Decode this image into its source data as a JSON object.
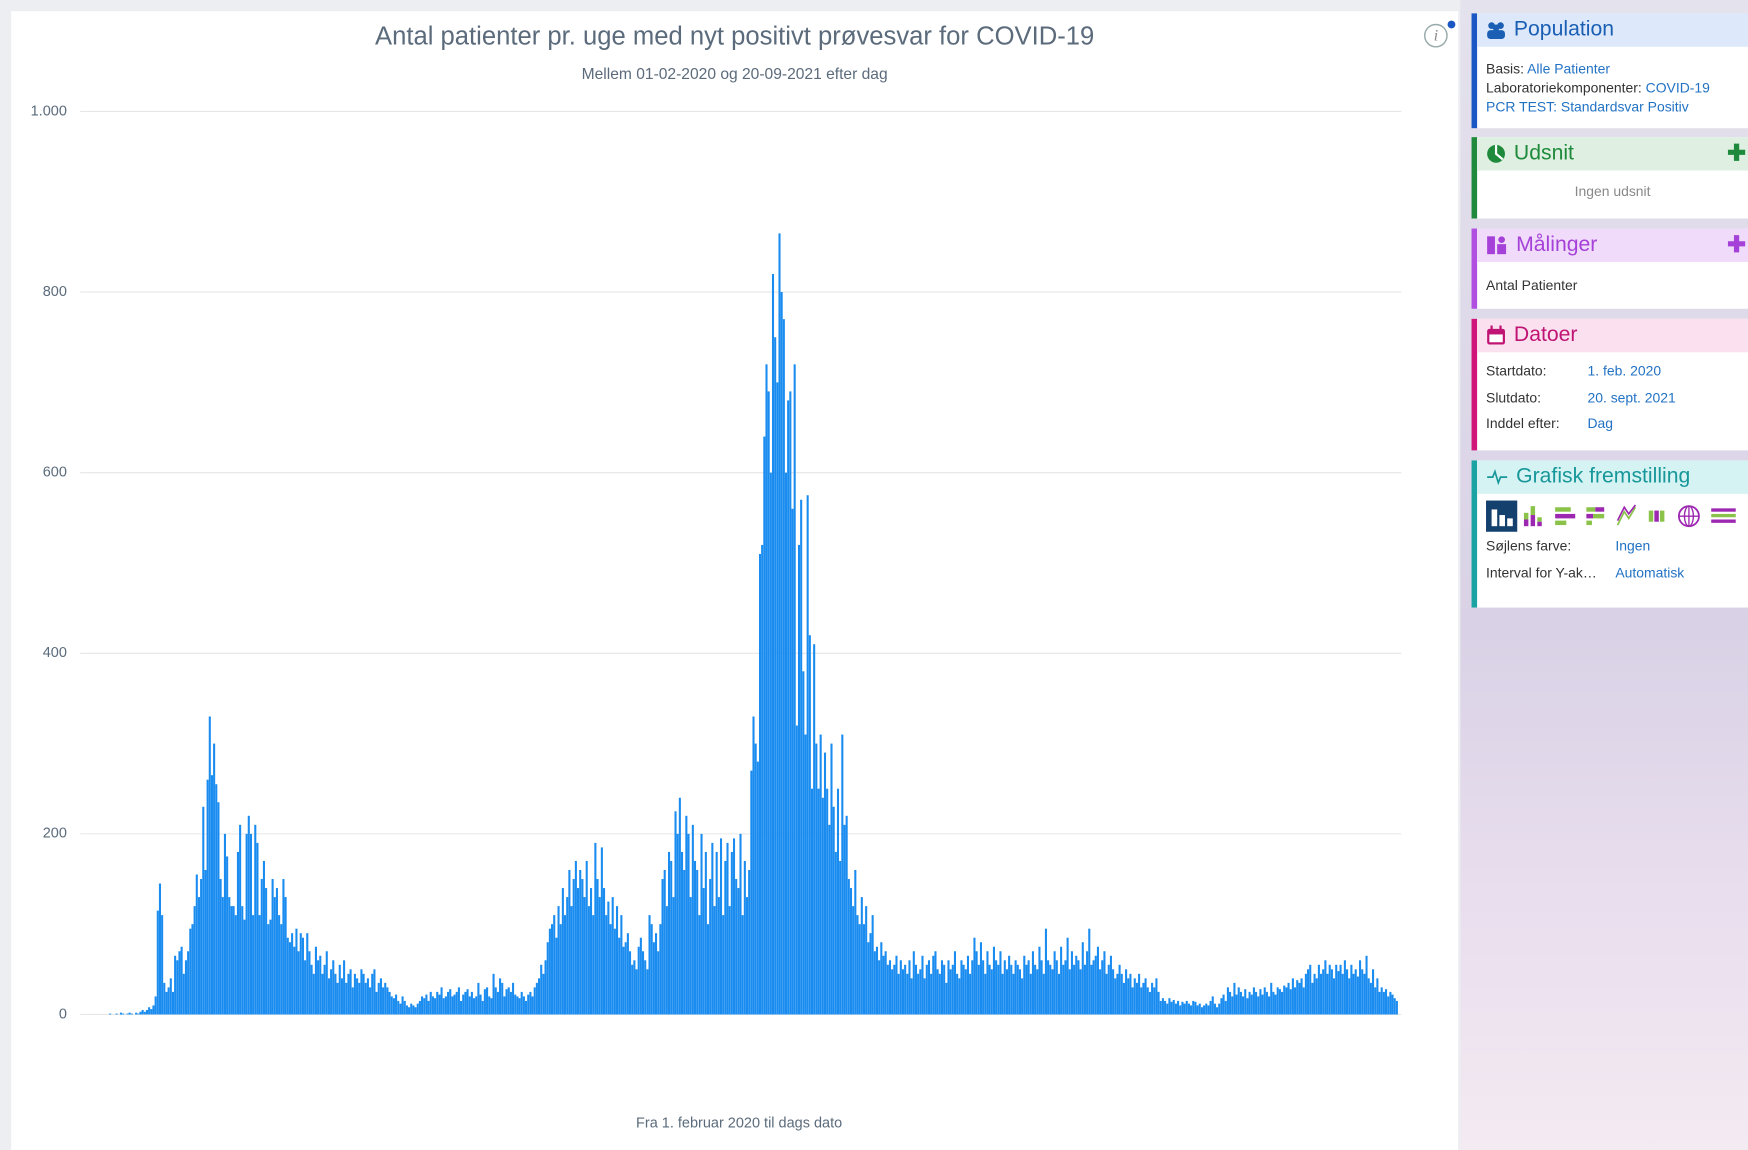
{
  "chart_data": {
    "type": "bar",
    "title": "Antal patienter pr. uge med nyt positivt prøvesvar for COVID-19",
    "subtitle": "Mellem 01-02-2020 og 20-09-2021 efter dag",
    "x_label": "Fra 1. februar 2020 til dags dato",
    "color": "#1a8cf0",
    "ylim": [
      0,
      1000
    ],
    "yticks": [
      0,
      200,
      400,
      600,
      800,
      {
        "value": 1000,
        "label": "1.000"
      }
    ],
    "grid": true,
    "values": [
      0,
      0,
      0,
      1,
      0,
      0,
      1,
      0,
      2,
      1,
      0,
      1,
      2,
      1,
      0,
      2,
      1,
      3,
      5,
      3,
      5,
      8,
      6,
      10,
      20,
      115,
      145,
      110,
      35,
      25,
      30,
      40,
      25,
      65,
      60,
      70,
      75,
      45,
      60,
      70,
      95,
      100,
      120,
      155,
      130,
      150,
      230,
      160,
      260,
      330,
      265,
      300,
      255,
      235,
      150,
      130,
      200,
      175,
      130,
      120,
      120,
      110,
      180,
      210,
      120,
      105,
      200,
      220,
      200,
      110,
      210,
      190,
      110,
      150,
      170,
      140,
      100,
      105,
      150,
      130,
      140,
      110,
      100,
      150,
      130,
      85,
      80,
      90,
      75,
      95,
      70,
      90,
      85,
      60,
      90,
      70,
      55,
      45,
      75,
      60,
      65,
      45,
      55,
      70,
      40,
      50,
      60,
      45,
      35,
      55,
      40,
      60,
      35,
      45,
      50,
      30,
      45,
      40,
      35,
      50,
      45,
      35,
      40,
      30,
      45,
      50,
      25,
      35,
      40,
      30,
      35,
      30,
      25,
      20,
      18,
      22,
      15,
      12,
      20,
      15,
      10,
      8,
      12,
      10,
      8,
      12,
      15,
      20,
      18,
      22,
      15,
      25,
      20,
      18,
      25,
      22,
      30,
      18,
      20,
      25,
      28,
      20,
      22,
      25,
      30,
      15,
      22,
      25,
      28,
      20,
      25,
      18,
      20,
      35,
      22,
      15,
      28,
      30,
      20,
      18,
      45,
      30,
      25,
      40,
      35,
      20,
      28,
      30,
      25,
      35,
      22,
      20,
      18,
      25,
      20,
      15,
      22,
      25,
      20,
      30,
      35,
      40,
      55,
      45,
      60,
      80,
      95,
      100,
      110,
      85,
      120,
      100,
      140,
      110,
      130,
      160,
      120,
      150,
      170,
      140,
      160,
      150,
      130,
      170,
      120,
      140,
      110,
      190,
      150,
      130,
      185,
      140,
      110,
      125,
      100,
      130,
      95,
      120,
      85,
      110,
      75,
      80,
      90,
      70,
      55,
      60,
      50,
      75,
      85,
      70,
      60,
      50,
      110,
      100,
      80,
      90,
      70,
      100,
      150,
      160,
      120,
      180,
      170,
      130,
      225,
      200,
      240,
      180,
      160,
      220,
      200,
      130,
      210,
      170,
      160,
      110,
      200,
      140,
      180,
      100,
      150,
      190,
      120,
      180,
      130,
      195,
      110,
      170,
      190,
      120,
      180,
      195,
      150,
      140,
      200,
      110,
      170,
      130,
      160,
      270,
      330,
      300,
      280,
      510,
      520,
      640,
      720,
      690,
      600,
      820,
      750,
      700,
      865,
      800,
      770,
      600,
      680,
      690,
      560,
      720,
      320,
      520,
      570,
      380,
      310,
      575,
      420,
      250,
      410,
      300,
      250,
      310,
      240,
      290,
      250,
      210,
      300,
      230,
      180,
      250,
      170,
      310,
      210,
      220,
      150,
      140,
      120,
      160,
      110,
      100,
      130,
      100,
      120,
      80,
      90,
      110,
      70,
      75,
      60,
      80,
      65,
      70,
      55,
      60,
      50,
      55,
      65,
      45,
      60,
      50,
      55,
      45,
      60,
      40,
      70,
      55,
      45,
      50,
      65,
      40,
      55,
      60,
      45,
      65,
      70,
      50,
      45,
      60,
      55,
      35,
      60,
      50,
      55,
      70,
      45,
      40,
      60,
      55,
      50,
      65,
      45,
      60,
      85,
      70,
      55,
      80,
      60,
      45,
      70,
      55,
      50,
      75,
      60,
      55,
      70,
      45,
      60,
      50,
      65,
      55,
      45,
      60,
      55,
      50,
      40,
      65,
      55,
      60,
      45,
      70,
      55,
      50,
      75,
      60,
      45,
      95,
      60,
      55,
      50,
      70,
      60,
      45,
      75,
      55,
      60,
      85,
      50,
      70,
      55,
      65,
      60,
      50,
      80,
      55,
      70,
      95,
      55,
      60,
      65,
      75,
      50,
      60,
      70,
      45,
      55,
      65,
      50,
      40,
      45,
      55,
      45,
      35,
      50,
      40,
      45,
      30,
      40,
      35,
      45,
      30,
      35,
      40,
      30,
      25,
      35,
      30,
      40,
      25,
      15,
      18,
      15,
      12,
      18,
      14,
      16,
      12,
      15,
      10,
      14,
      12,
      15,
      12,
      10,
      15,
      14,
      10,
      12,
      8,
      10,
      12,
      10,
      15,
      20,
      12,
      8,
      12,
      18,
      22,
      15,
      30,
      25,
      20,
      35,
      22,
      30,
      25,
      20,
      28,
      18,
      25,
      22,
      30,
      25,
      20,
      28,
      22,
      30,
      25,
      20,
      35,
      25,
      22,
      30,
      28,
      25,
      32,
      30,
      35,
      28,
      40,
      30,
      38,
      35,
      40,
      30,
      45,
      50,
      55,
      35,
      45,
      40,
      55,
      45,
      50,
      60,
      45,
      55,
      50,
      40,
      55,
      48,
      55,
      45,
      60,
      50,
      40,
      55,
      45,
      50,
      42,
      60,
      50,
      45,
      65,
      40,
      35,
      50,
      30,
      40,
      25,
      30,
      25,
      28,
      20,
      25,
      22,
      18,
      15
    ]
  },
  "sidebar": {
    "population": {
      "title": "Population",
      "rows": [
        {
          "label": "Basis:",
          "value": "Alle Patienter"
        },
        {
          "label": "Laboratoriekomponenter:",
          "value": "COVID-19"
        },
        {
          "label": "PCR TEST:",
          "value": "Standardsvar Positiv"
        }
      ]
    },
    "udsnit": {
      "title": "Udsnit",
      "text": "Ingen udsnit"
    },
    "malinger": {
      "title": "Målinger",
      "text": "Antal Patienter"
    },
    "datoer": {
      "title": "Datoer",
      "rows": [
        {
          "label": "Startdato:",
          "value": "1. feb. 2020"
        },
        {
          "label": "Slutdato:",
          "value": "20. sept. 2021"
        },
        {
          "label": "Inddel efter:",
          "value": "Dag"
        }
      ]
    },
    "grafisk": {
      "title": "Grafisk fremstilling",
      "rows": [
        {
          "label": "Søjlens farve:",
          "value": "Ingen"
        },
        {
          "label": "Interval for Y-ak…",
          "value": "Automatisk"
        }
      ]
    }
  }
}
